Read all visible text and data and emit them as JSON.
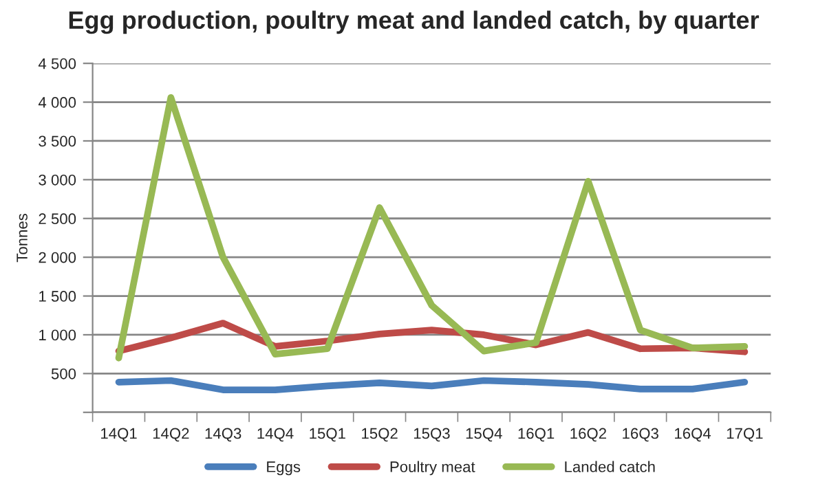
{
  "chart_data": {
    "type": "line",
    "title": "Egg production, poultry meat and landed catch, by quarter",
    "ylabel": "Tonnes",
    "categories": [
      "14Q1",
      "14Q2",
      "14Q3",
      "14Q4",
      "15Q1",
      "15Q2",
      "15Q3",
      "15Q4",
      "16Q1",
      "16Q2",
      "16Q3",
      "16Q4",
      "17Q1"
    ],
    "series": [
      {
        "name": "Eggs",
        "color": "#4a7ebb",
        "values": [
          390,
          410,
          290,
          290,
          340,
          380,
          340,
          410,
          390,
          360,
          300,
          300,
          390
        ]
      },
      {
        "name": "Poultry meat",
        "color": "#be4b48",
        "values": [
          790,
          960,
          1150,
          850,
          920,
          1010,
          1060,
          1000,
          870,
          1030,
          820,
          830,
          780
        ]
      },
      {
        "name": "Landed catch",
        "color": "#98b954",
        "values": [
          700,
          4060,
          2000,
          750,
          820,
          2640,
          1380,
          790,
          900,
          2980,
          1060,
          830,
          850
        ]
      }
    ],
    "ylim": [
      0,
      4500
    ],
    "yticks": [
      {
        "value": 0,
        "label": null
      },
      {
        "value": 500,
        "label": "500"
      },
      {
        "value": 1000,
        "label": "1 000"
      },
      {
        "value": 1500,
        "label": "1 500"
      },
      {
        "value": 2000,
        "label": "2 000"
      },
      {
        "value": 2500,
        "label": "2 500"
      },
      {
        "value": 3000,
        "label": "3 000"
      },
      {
        "value": 3500,
        "label": "3 500"
      },
      {
        "value": 4000,
        "label": "4 000"
      },
      {
        "value": 4500,
        "label": "4 500"
      }
    ],
    "grid": "y",
    "legend": "bottom",
    "marker": "none",
    "line_style": "solid"
  }
}
